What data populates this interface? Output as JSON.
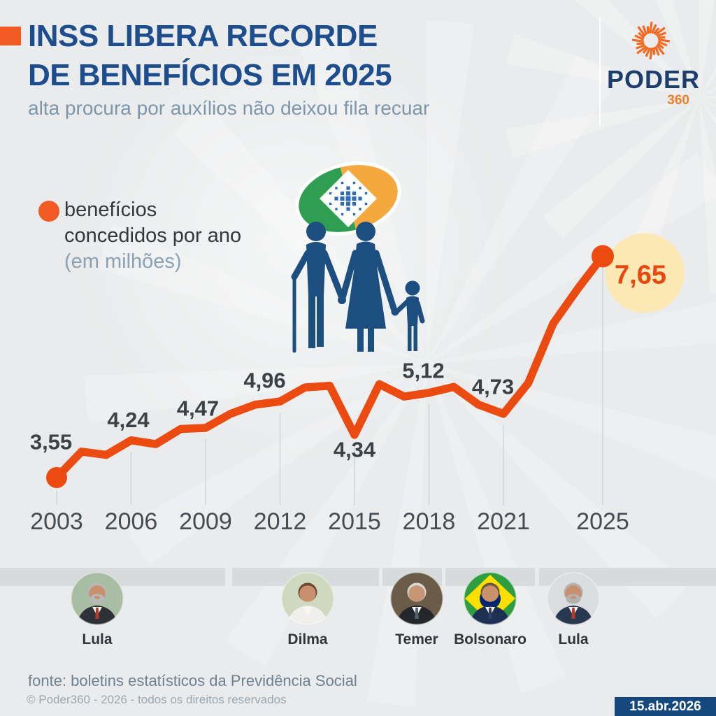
{
  "header": {
    "title_line1": "INSS LIBERA RECORDE",
    "title_line2": "DE BENEFÍCIOS EM 2025",
    "subtitle": "alta procura por auxílios não deixou fila recuar"
  },
  "brand": {
    "name": "PODER",
    "suffix": "360"
  },
  "legend": {
    "line1": "benefícios",
    "line2": "concedidos por ano",
    "line3": "(em milhões)"
  },
  "chart_data": {
    "type": "line",
    "title": "INSS libera recorde de benefícios em 2025",
    "series_name": "benefícios concedidos por ano (em milhões)",
    "x": [
      2003,
      2004,
      2005,
      2006,
      2007,
      2008,
      2009,
      2010,
      2011,
      2012,
      2013,
      2014,
      2015,
      2016,
      2017,
      2018,
      2019,
      2020,
      2021,
      2022,
      2023,
      2024,
      2025
    ],
    "values": [
      3.55,
      4.03,
      3.97,
      4.24,
      4.17,
      4.45,
      4.47,
      4.73,
      4.9,
      4.96,
      5.22,
      5.25,
      4.34,
      5.28,
      5.05,
      5.12,
      5.23,
      4.9,
      4.73,
      5.3,
      6.4,
      7.05,
      7.65
    ],
    "labeled_points": [
      {
        "year": 2003,
        "label": "3,55"
      },
      {
        "year": 2006,
        "label": "4,24"
      },
      {
        "year": 2009,
        "label": "4,47"
      },
      {
        "year": 2012,
        "label": "4,96"
      },
      {
        "year": 2015,
        "label": "4,34"
      },
      {
        "year": 2018,
        "label": "5,12"
      },
      {
        "year": 2021,
        "label": "4,73"
      }
    ],
    "highlight": {
      "year": 2025,
      "label": "7,65"
    },
    "x_ticks": [
      2003,
      2006,
      2009,
      2012,
      2015,
      2018,
      2021,
      2025
    ],
    "xlim": [
      2003,
      2025
    ],
    "ylim": [
      3.2,
      8.0
    ],
    "grid": "vertical-lines-at-ticks",
    "legend_position": "top-left",
    "colors": {
      "line": "#eb4b11",
      "point": "#eb4b11",
      "data_label": "#3a4147",
      "tick_label": "#454d54",
      "gridline": "#d2d6d8",
      "highlight_bg": "#fce8b4",
      "highlight_text": "#e8480f"
    }
  },
  "presidents": [
    {
      "name": "Lula"
    },
    {
      "name": "Dilma"
    },
    {
      "name": "Temer"
    },
    {
      "name": "Bolsonaro"
    },
    {
      "name": "Lula"
    }
  ],
  "footer": {
    "source": "fonte: boletins estatísticos da Previdência Social",
    "copyright": "© Poder360 - 2026 - todos os direitos reservados",
    "date_badge": "15.abr.2026"
  },
  "colors": {
    "background": "#e9ebec",
    "title_blue": "#1d4d8c",
    "subtitle_gray_blue": "#7d96aa",
    "accent_orange": "#f15a22",
    "brand_navy": "#1c3e6d",
    "brand_orange": "#ef7d2a",
    "band_gray": "#d8dbdc",
    "badge_navy": "#15497e",
    "icon_navy": "#1d4e80",
    "inss_green": "#2f9e52",
    "inss_orange": "#f5a83d",
    "inss_blue": "#2e6cb5"
  }
}
